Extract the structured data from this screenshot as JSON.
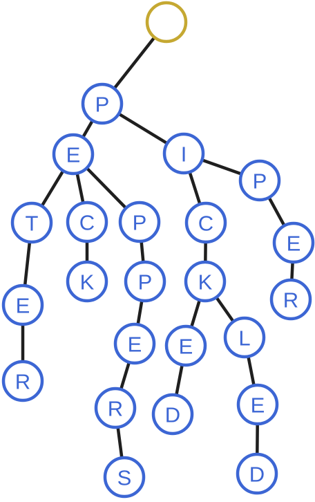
{
  "colors": {
    "node_stroke": "#3c66d4",
    "root_stroke": "#c5a832",
    "label": "#3c66d4",
    "edge": "#1f1f1f"
  },
  "nodes": [
    {
      "id": "root",
      "label": ""
    },
    {
      "id": "n_P",
      "label": "P"
    },
    {
      "id": "n_PE",
      "label": "E"
    },
    {
      "id": "n_PI",
      "label": "I"
    },
    {
      "id": "n_PET",
      "label": "T"
    },
    {
      "id": "n_PEC",
      "label": "C"
    },
    {
      "id": "n_PEP",
      "label": "P"
    },
    {
      "id": "n_PETE",
      "label": "E"
    },
    {
      "id": "n_PETER",
      "label": "R"
    },
    {
      "id": "n_PECK",
      "label": "K"
    },
    {
      "id": "n_PEPP",
      "label": "P"
    },
    {
      "id": "n_PEPPE",
      "label": "E"
    },
    {
      "id": "n_PEPPER",
      "label": "R"
    },
    {
      "id": "n_PEPPERS",
      "label": "S"
    },
    {
      "id": "n_PIC",
      "label": "C"
    },
    {
      "id": "n_PICK",
      "label": "K"
    },
    {
      "id": "n_PICKE",
      "label": "E"
    },
    {
      "id": "n_PICKED",
      "label": "D"
    },
    {
      "id": "n_PICKL",
      "label": "L"
    },
    {
      "id": "n_PICKLE",
      "label": "E"
    },
    {
      "id": "n_PICKLED",
      "label": "D"
    },
    {
      "id": "n_PIP",
      "label": "P"
    },
    {
      "id": "n_PIPE",
      "label": "E"
    },
    {
      "id": "n_PIPER",
      "label": "R"
    }
  ],
  "edges": [
    [
      "root",
      "n_P"
    ],
    [
      "n_P",
      "n_PE"
    ],
    [
      "n_P",
      "n_PI"
    ],
    [
      "n_PE",
      "n_PET"
    ],
    [
      "n_PE",
      "n_PEC"
    ],
    [
      "n_PE",
      "n_PEP"
    ],
    [
      "n_PET",
      "n_PETE"
    ],
    [
      "n_PETE",
      "n_PETER"
    ],
    [
      "n_PEC",
      "n_PECK"
    ],
    [
      "n_PEP",
      "n_PEPP"
    ],
    [
      "n_PEPP",
      "n_PEPPE"
    ],
    [
      "n_PEPPE",
      "n_PEPPER"
    ],
    [
      "n_PEPPER",
      "n_PEPPERS"
    ],
    [
      "n_PI",
      "n_PIC"
    ],
    [
      "n_PI",
      "n_PIP"
    ],
    [
      "n_PIC",
      "n_PICK"
    ],
    [
      "n_PICK",
      "n_PICKE"
    ],
    [
      "n_PICK",
      "n_PICKL"
    ],
    [
      "n_PICKE",
      "n_PICKED"
    ],
    [
      "n_PICKL",
      "n_PICKLE"
    ],
    [
      "n_PICKLE",
      "n_PICKLED"
    ],
    [
      "n_PIP",
      "n_PIPE"
    ],
    [
      "n_PIPE",
      "n_PIPER"
    ]
  ]
}
